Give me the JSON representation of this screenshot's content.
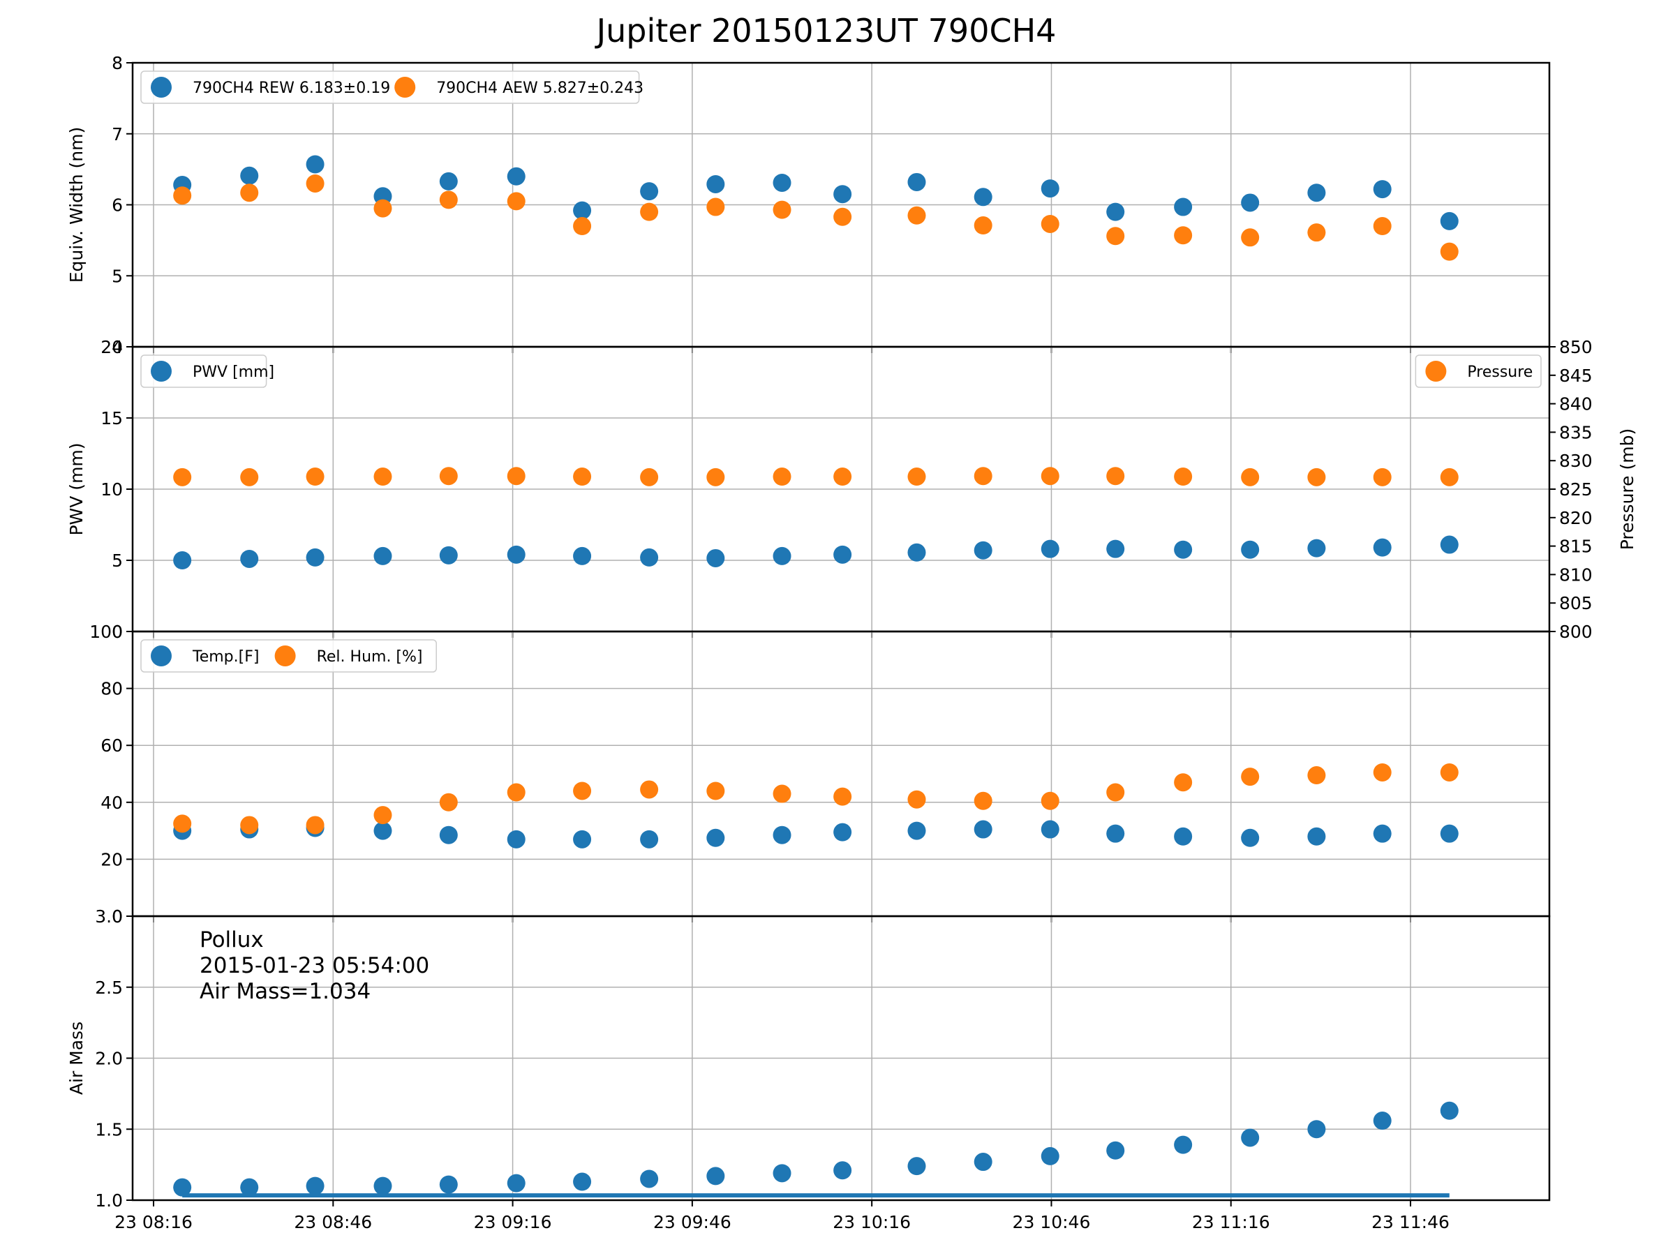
{
  "title": "Jupiter 20150123UT 790CH4",
  "colors": {
    "series_a": "#1f77b4",
    "series_b": "#ff7f0e",
    "grid": "#b0b0b0",
    "axis": "#000000"
  },
  "x_axis": {
    "tick_labels": [
      "23 08:16",
      "23 08:46",
      "23 09:16",
      "23 09:46",
      "23 10:16",
      "23 10:46",
      "23 11:16",
      "23 11:46"
    ],
    "tick_minutes": [
      496,
      526,
      556,
      586,
      616,
      646,
      676,
      706
    ],
    "range_minutes": [
      492.5,
      729.2
    ]
  },
  "chart_data": [
    {
      "type": "scatter",
      "ylabel": "Equiv. Width (nm)",
      "ylim": [
        4,
        8
      ],
      "yticks": [
        4,
        5,
        6,
        7,
        8
      ],
      "grid": true,
      "legend": "top-left",
      "legend_layout": "horizontal",
      "x_minutes": [
        500.8,
        512,
        523,
        534.3,
        545.3,
        556.6,
        567.6,
        578.8,
        589.9,
        601,
        611.1,
        623.5,
        634.6,
        645.8,
        656.7,
        668,
        679.2,
        690.3,
        701.3,
        712.5
      ],
      "series": [
        {
          "name": "790CH4 REW 6.183±0.19",
          "color": "#1f77b4",
          "values": [
            6.28,
            6.41,
            6.57,
            6.12,
            6.33,
            6.4,
            5.92,
            6.19,
            6.29,
            6.31,
            6.15,
            6.32,
            6.11,
            6.23,
            5.9,
            5.97,
            6.03,
            6.17,
            6.22,
            5.77
          ]
        },
        {
          "name": "790CH4 AEW 5.827±0.243",
          "color": "#ff7f0e",
          "values": [
            6.13,
            6.17,
            6.3,
            5.95,
            6.07,
            6.05,
            5.7,
            5.9,
            5.97,
            5.93,
            5.83,
            5.85,
            5.71,
            5.73,
            5.56,
            5.57,
            5.54,
            5.61,
            5.7,
            5.34
          ]
        }
      ]
    },
    {
      "type": "scatter",
      "ylabel": "PWV (mm)",
      "ylim": [
        0,
        20
      ],
      "yticks": [
        0,
        5,
        10,
        15,
        20
      ],
      "grid": true,
      "legend": "top-left",
      "legend_right": "top-right",
      "x_minutes": [
        500.8,
        512,
        523,
        534.3,
        545.3,
        556.6,
        567.6,
        578.8,
        589.9,
        601,
        611.1,
        623.5,
        634.6,
        645.8,
        656.7,
        668,
        679.2,
        690.3,
        701.3,
        712.5
      ],
      "series": [
        {
          "name": "PWV [mm]",
          "color": "#1f77b4",
          "axis": "left",
          "values": [
            5.0,
            5.1,
            5.2,
            5.3,
            5.35,
            5.4,
            5.3,
            5.2,
            5.15,
            5.3,
            5.4,
            5.55,
            5.7,
            5.8,
            5.8,
            5.75,
            5.75,
            5.85,
            5.9,
            6.1
          ]
        },
        {
          "name": "Pressure",
          "color": "#ff7f0e",
          "axis": "right",
          "values": [
            827.1,
            827.1,
            827.2,
            827.2,
            827.3,
            827.3,
            827.2,
            827.1,
            827.1,
            827.2,
            827.2,
            827.2,
            827.3,
            827.3,
            827.3,
            827.2,
            827.1,
            827.1,
            827.1,
            827.1
          ]
        }
      ],
      "y2label": "Pressure (mb)",
      "y2lim": [
        800,
        850
      ],
      "y2ticks": [
        800,
        805,
        810,
        815,
        820,
        825,
        830,
        835,
        840,
        845,
        850
      ]
    },
    {
      "type": "scatter",
      "ylim": [
        0,
        100
      ],
      "yticks": [
        0,
        20,
        40,
        60,
        80,
        100
      ],
      "grid": true,
      "legend": "top-left",
      "legend_layout": "horizontal",
      "x_minutes": [
        500.8,
        512,
        523,
        534.3,
        545.3,
        556.6,
        567.6,
        578.8,
        589.9,
        601,
        611.1,
        623.5,
        634.6,
        645.8,
        656.7,
        668,
        679.2,
        690.3,
        701.3,
        712.5
      ],
      "series": [
        {
          "name": "Temp.[F]",
          "color": "#1f77b4",
          "values": [
            30,
            30.5,
            31,
            30,
            28.5,
            27,
            27,
            27,
            27.5,
            28.5,
            29.5,
            30,
            30.5,
            30.5,
            29,
            28,
            27.5,
            28,
            29,
            29
          ]
        },
        {
          "name": "Rel. Hum. [%]",
          "color": "#ff7f0e",
          "values": [
            32.5,
            32,
            32,
            35.5,
            40,
            43.5,
            44,
            44.5,
            44,
            43,
            42,
            41,
            40.5,
            40.5,
            43.5,
            47,
            49,
            49.5,
            50.5,
            50.5
          ]
        }
      ]
    },
    {
      "type": "scatter",
      "ylabel": "Air Mass",
      "ylim": [
        1.0,
        3.0
      ],
      "yticks": [
        1.0,
        1.5,
        2.0,
        2.5,
        3.0
      ],
      "grid": true,
      "x_minutes": [
        500.8,
        512,
        523,
        534.3,
        545.3,
        556.6,
        567.6,
        578.8,
        589.9,
        601,
        611.1,
        623.5,
        634.6,
        645.8,
        656.7,
        668,
        679.2,
        690.3,
        701.3,
        712.5
      ],
      "series": [
        {
          "color": "#1f77b4",
          "values": [
            1.09,
            1.09,
            1.1,
            1.1,
            1.11,
            1.12,
            1.13,
            1.15,
            1.17,
            1.19,
            1.21,
            1.24,
            1.27,
            1.31,
            1.35,
            1.39,
            1.44,
            1.5,
            1.56,
            1.63
          ]
        }
      ],
      "reference_line": {
        "value": 1.034,
        "x_start_minutes": 500.8,
        "x_end_minutes": 712.5,
        "color": "#1f77b4"
      },
      "annotation_lines": [
        "Pollux",
        "2015-01-23 05:54:00",
        "Air Mass=1.034"
      ]
    }
  ]
}
